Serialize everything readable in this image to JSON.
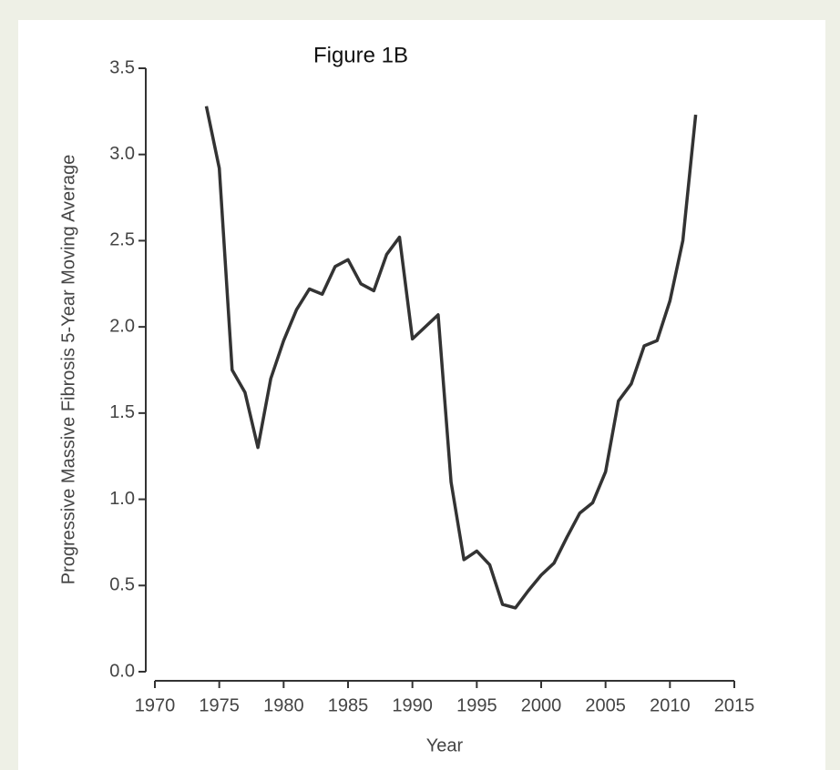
{
  "chart_data": {
    "type": "line",
    "title": "Figure 1B",
    "x_label": "Year",
    "y_label": "Progressive Massive Fibrosis 5-Year Moving Average",
    "x": [
      1974,
      1975,
      1976,
      1977,
      1978,
      1979,
      1980,
      1981,
      1982,
      1983,
      1984,
      1985,
      1986,
      1987,
      1988,
      1989,
      1990,
      1991,
      1992,
      1993,
      1994,
      1995,
      1996,
      1997,
      1998,
      1999,
      2000,
      2001,
      2002,
      2003,
      2004,
      2005,
      2006,
      2007,
      2008,
      2009,
      2010,
      2011,
      2012
    ],
    "values": [
      3.28,
      2.92,
      1.75,
      1.62,
      1.3,
      1.7,
      1.92,
      2.1,
      2.22,
      2.19,
      2.35,
      2.39,
      2.25,
      2.21,
      2.42,
      2.52,
      1.93,
      2.0,
      2.07,
      1.1,
      0.65,
      0.7,
      0.62,
      0.39,
      0.37,
      0.47,
      0.56,
      0.63,
      0.78,
      0.92,
      0.98,
      1.16,
      1.57,
      1.67,
      1.89,
      1.92,
      2.15,
      2.5,
      3.23
    ],
    "color": "#333333",
    "xlim": [
      1970,
      2015
    ],
    "xticks": [
      1970,
      1975,
      1980,
      1985,
      1990,
      1995,
      2000,
      2005,
      2010,
      2015
    ],
    "ylim": [
      0,
      3.5
    ],
    "yticks": [
      {
        "value": 0,
        "label": "0.0"
      },
      0.5,
      {
        "value": 1,
        "label": "1.0"
      },
      1.5,
      {
        "value": 2,
        "label": "2.0"
      },
      2.5,
      {
        "value": 3,
        "label": "3.0"
      },
      3.5
    ]
  }
}
